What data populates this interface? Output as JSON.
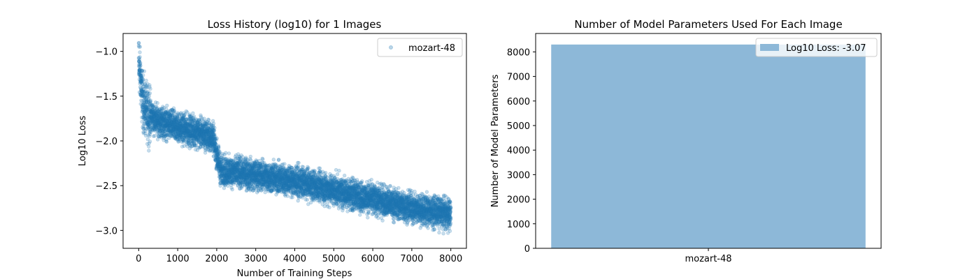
{
  "chart_data": [
    {
      "type": "scatter",
      "title": "Loss History (log10) for 1 Images",
      "xlabel": "Number of Training Steps",
      "ylabel": "Log10 Loss",
      "xlim": [
        -400,
        8400
      ],
      "ylim": [
        -3.2,
        -0.8
      ],
      "xticks": [
        0,
        1000,
        2000,
        3000,
        4000,
        5000,
        6000,
        7000,
        8000
      ],
      "yticks": [
        -1.0,
        -1.5,
        -2.0,
        -2.5,
        -3.0
      ],
      "color": "#1f77b4",
      "legend": "top-right",
      "series": [
        {
          "name": "mozart-48",
          "trend": {
            "x": [
              0,
              100,
              200,
              500,
              1000,
              1500,
              1900,
              2000,
              2100,
              3000,
              4000,
              5000,
              6000,
              7000,
              8000
            ],
            "y": [
              -1.1,
              -1.55,
              -1.68,
              -1.78,
              -1.85,
              -1.9,
              -1.96,
              -2.15,
              -2.33,
              -2.38,
              -2.45,
              -2.55,
              -2.65,
              -2.75,
              -2.82
            ]
          },
          "spread": 0.32,
          "points": 8000
        }
      ]
    },
    {
      "type": "bar",
      "title": "Number of Model Parameters Used For Each Image",
      "xlabel": "",
      "ylabel": "Number of Model Parameters",
      "categories": [
        "mozart-48"
      ],
      "values": [
        8300
      ],
      "ylim": [
        0,
        8750
      ],
      "yticks": [
        0,
        1000,
        2000,
        3000,
        4000,
        5000,
        6000,
        7000,
        8000
      ],
      "color": "#8db8d8",
      "legend": "top-right",
      "series": [
        {
          "name": "Log10 Loss: -3.07",
          "values": [
            8300
          ]
        }
      ]
    }
  ]
}
